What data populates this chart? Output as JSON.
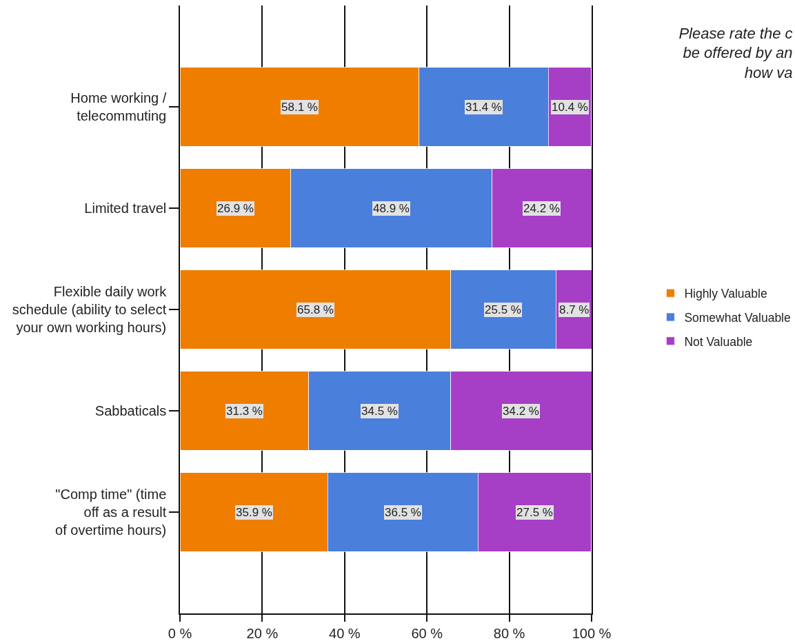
{
  "chart_data": {
    "type": "bar",
    "title": "Please rate the c\nbe offered by an\nhow va",
    "orientation": "horizontal",
    "stacked": true,
    "categories": [
      "Home working /\ntelecommuting",
      "Limited travel",
      "Flexible daily work\nschedule (ability to select\nyour own working hours)",
      "Sabbaticals",
      "\"Comp time\" (time\noff as a result\nof overtime hours)"
    ],
    "series": [
      {
        "name": "Highly Valuable",
        "color": "#ee7d00",
        "values": [
          58.1,
          26.9,
          65.8,
          31.3,
          35.9
        ],
        "value_labels": [
          "58.1 %",
          "26.9 %",
          "65.8 %",
          "31.3 %",
          "35.9 %"
        ]
      },
      {
        "name": "Somewhat Valuable",
        "color": "#4a7fdc",
        "values": [
          31.4,
          48.9,
          25.5,
          34.5,
          36.5
        ],
        "value_labels": [
          "31.4 %",
          "48.9 %",
          "25.5 %",
          "34.5 %",
          "36.5 %"
        ]
      },
      {
        "name": "Not Valuable",
        "color": "#a63fc6",
        "values": [
          10.4,
          24.2,
          8.7,
          34.2,
          27.5
        ],
        "value_labels": [
          "10.4 %",
          "24.2 %",
          "8.7 %",
          "34.2 %",
          "27.5 %"
        ]
      }
    ],
    "xlim": [
      0,
      100
    ],
    "xticks": [
      {
        "value": 0,
        "label": "0 %"
      },
      {
        "value": 20,
        "label": "20 %"
      },
      {
        "value": 40,
        "label": "40 %"
      },
      {
        "value": 60,
        "label": "60 %"
      },
      {
        "value": 80,
        "label": "80 %"
      },
      {
        "value": 100,
        "label": "100 %"
      }
    ],
    "grid": "x",
    "legend": "right"
  }
}
